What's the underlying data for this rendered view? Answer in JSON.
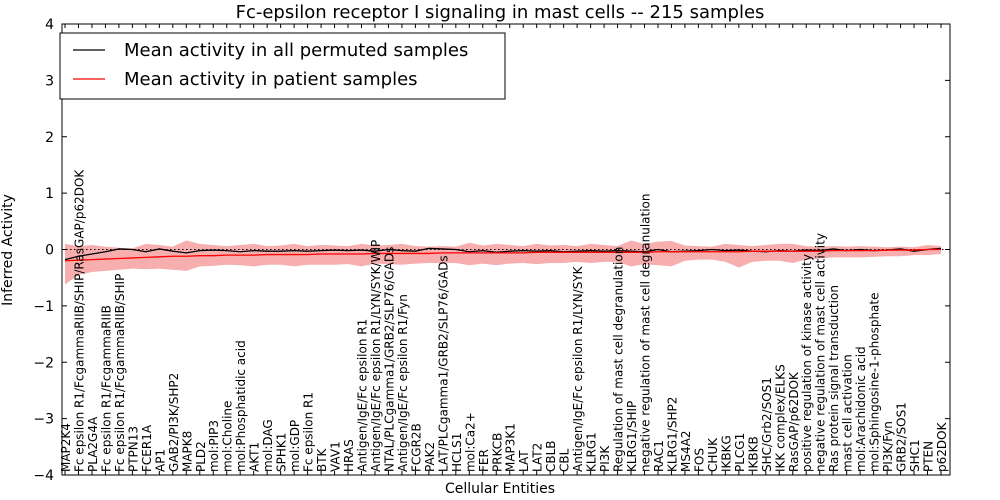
{
  "chart_data": {
    "type": "line",
    "title": "Fc-epsilon receptor I signaling in mast cells -- 215 samples",
    "xlabel": "Cellular Entities",
    "ylabel": "Inferred Activity",
    "ylim": [
      -4,
      4
    ],
    "yticks": [
      -4,
      -3,
      -2,
      -1,
      0,
      1,
      2,
      3,
      4
    ],
    "ytick_labels": [
      "−4",
      "−3",
      "−2",
      "−1",
      "0",
      "1",
      "2",
      "3",
      "4"
    ],
    "reference_line": 0,
    "legend_position": "top-left",
    "categories": [
      "MAP2K4",
      "Fc epsilon R1/FcgammaRIIB/SHIP/RasGAP/p62DOK",
      "PLA2G4A",
      "Fc epsilon R1/FcgammaRIIB",
      "Fc epsilon R1/FcgammaRIIB/SHIP",
      "PTPN13",
      "FCER1A",
      "AP1",
      "GAB2/PI3K/SHP2",
      "MAPK8",
      "PLD2",
      "mol:PIP3",
      "mol:Choline",
      "mol:Phosphatidic acid",
      "AKT1",
      "mol:DAG",
      "SPHK1",
      "mol:GDP",
      "Fc epsilon R1",
      "BTK",
      "VAV1",
      "HRAS",
      "Antigen/IgE/Fc epsilon R1",
      "Antigen/IgE/Fc epsilon R1/LYN/SYK/WIP",
      "NTAL/PLCgamma1/GRB2/SLP76/GADs",
      "Antigen/IgE/Fc epsilon R1/Fyn",
      "FCGR2B",
      "PAK2",
      "LAT/PLCgamma1/GRB2/SLP76/GADs",
      "HCLS1",
      "mol:Ca2+",
      "FER",
      "PRKCB",
      "MAP3K1",
      "LAT",
      "LAT2",
      "CBLB",
      "CBL",
      "Antigen/IgE/Fc epsilon R1/LYN/SYK",
      "KLRG1",
      "PI3K",
      "Regulation of mast cell degranulation",
      "KLRG1/SHIP",
      "negative regulation of mast cell degranulation",
      "RAC1",
      "KLRG1/SHP2",
      "MS4A2",
      "FOS",
      "CHUK",
      "IKBKG",
      "PLCG1",
      "IKBKB",
      "SHC/Grb2/SOS1",
      "IKK complex/ELKS",
      "RasGAP/p62DOK",
      "positive regulation of kinase activity",
      "negative regulation of mast cell activity",
      "Ras protein signal transduction",
      "mast cell activation",
      "mol:Arachidonic acid",
      "mol:Sphingosine-1-phosphate",
      "PI3K/Fyn",
      "GRB2/SOS1",
      "SHC1",
      "PTEN",
      "p62DOK"
    ],
    "series": [
      {
        "name": "Mean activity in all permuted samples",
        "color": "#000000",
        "values": [
          -0.18,
          -0.12,
          -0.08,
          -0.04,
          0.01,
          0.0,
          -0.04,
          0.01,
          -0.03,
          -0.06,
          -0.02,
          -0.01,
          -0.02,
          -0.04,
          -0.02,
          -0.03,
          -0.03,
          -0.02,
          -0.03,
          -0.02,
          -0.01,
          -0.02,
          -0.01,
          -0.03,
          0.0,
          -0.02,
          -0.03,
          0.02,
          0.01,
          0.0,
          -0.04,
          -0.02,
          -0.05,
          -0.03,
          -0.02,
          -0.03,
          -0.02,
          -0.04,
          -0.03,
          -0.02,
          -0.03,
          -0.02,
          -0.03,
          -0.04,
          0.0,
          -0.04,
          -0.03,
          -0.02,
          0.0,
          -0.02,
          -0.01,
          -0.03,
          -0.04,
          -0.02,
          -0.03,
          -0.01,
          -0.02,
          0.01,
          -0.02,
          0.0,
          -0.02,
          -0.01,
          0.01,
          -0.03,
          0.0,
          0.02
        ]
      },
      {
        "name": "Mean activity in patient samples",
        "color": "#ff0000",
        "band_color": "#f4a0a0",
        "values": [
          -0.2,
          -0.19,
          -0.18,
          -0.17,
          -0.16,
          -0.15,
          -0.14,
          -0.13,
          -0.12,
          -0.12,
          -0.11,
          -0.11,
          -0.1,
          -0.1,
          -0.1,
          -0.09,
          -0.09,
          -0.09,
          -0.09,
          -0.08,
          -0.08,
          -0.08,
          -0.08,
          -0.07,
          -0.07,
          -0.07,
          -0.07,
          -0.07,
          -0.06,
          -0.06,
          -0.06,
          -0.06,
          -0.06,
          -0.06,
          -0.06,
          -0.05,
          -0.05,
          -0.05,
          -0.05,
          -0.05,
          -0.05,
          -0.05,
          -0.05,
          -0.05,
          -0.04,
          -0.04,
          -0.04,
          -0.04,
          -0.04,
          -0.04,
          -0.04,
          -0.03,
          -0.03,
          -0.03,
          -0.03,
          -0.03,
          -0.03,
          -0.02,
          -0.02,
          -0.02,
          -0.02,
          -0.01,
          -0.01,
          -0.01,
          0.0,
          0.0
        ],
        "band_upper": [
          0.1,
          0.06,
          0.08,
          0.05,
          0.03,
          0.02,
          0.1,
          0.08,
          0.05,
          0.16,
          0.1,
          0.08,
          0.06,
          0.08,
          0.1,
          0.06,
          0.07,
          0.1,
          0.06,
          0.08,
          0.07,
          0.06,
          0.1,
          0.07,
          0.08,
          0.1,
          0.06,
          0.05,
          0.06,
          0.05,
          0.12,
          0.07,
          0.1,
          0.08,
          0.06,
          0.1,
          0.07,
          0.08,
          0.06,
          0.1,
          0.08,
          0.06,
          0.16,
          0.1,
          0.14,
          0.15,
          0.07,
          0.06,
          0.05,
          0.1,
          0.08,
          0.06,
          0.08,
          0.1,
          0.1,
          0.06,
          0.05,
          0.06,
          0.05,
          0.06,
          0.05,
          0.04,
          0.05,
          0.04,
          0.08,
          0.06
        ],
        "band_lower": [
          -0.62,
          -0.45,
          -0.4,
          -0.38,
          -0.36,
          -0.34,
          -0.35,
          -0.34,
          -0.36,
          -0.38,
          -0.3,
          -0.29,
          -0.27,
          -0.28,
          -0.3,
          -0.27,
          -0.27,
          -0.3,
          -0.27,
          -0.27,
          -0.27,
          -0.26,
          -0.3,
          -0.25,
          -0.26,
          -0.27,
          -0.25,
          -0.24,
          -0.24,
          -0.24,
          -0.28,
          -0.25,
          -0.28,
          -0.25,
          -0.24,
          -0.26,
          -0.24,
          -0.24,
          -0.22,
          -0.24,
          -0.22,
          -0.22,
          -0.3,
          -0.26,
          -0.28,
          -0.3,
          -0.2,
          -0.18,
          -0.18,
          -0.22,
          -0.32,
          -0.22,
          -0.2,
          -0.2,
          -0.24,
          -0.18,
          -0.16,
          -0.14,
          -0.14,
          -0.14,
          -0.13,
          -0.12,
          -0.12,
          -0.1,
          -0.1,
          -0.08
        ]
      }
    ]
  }
}
